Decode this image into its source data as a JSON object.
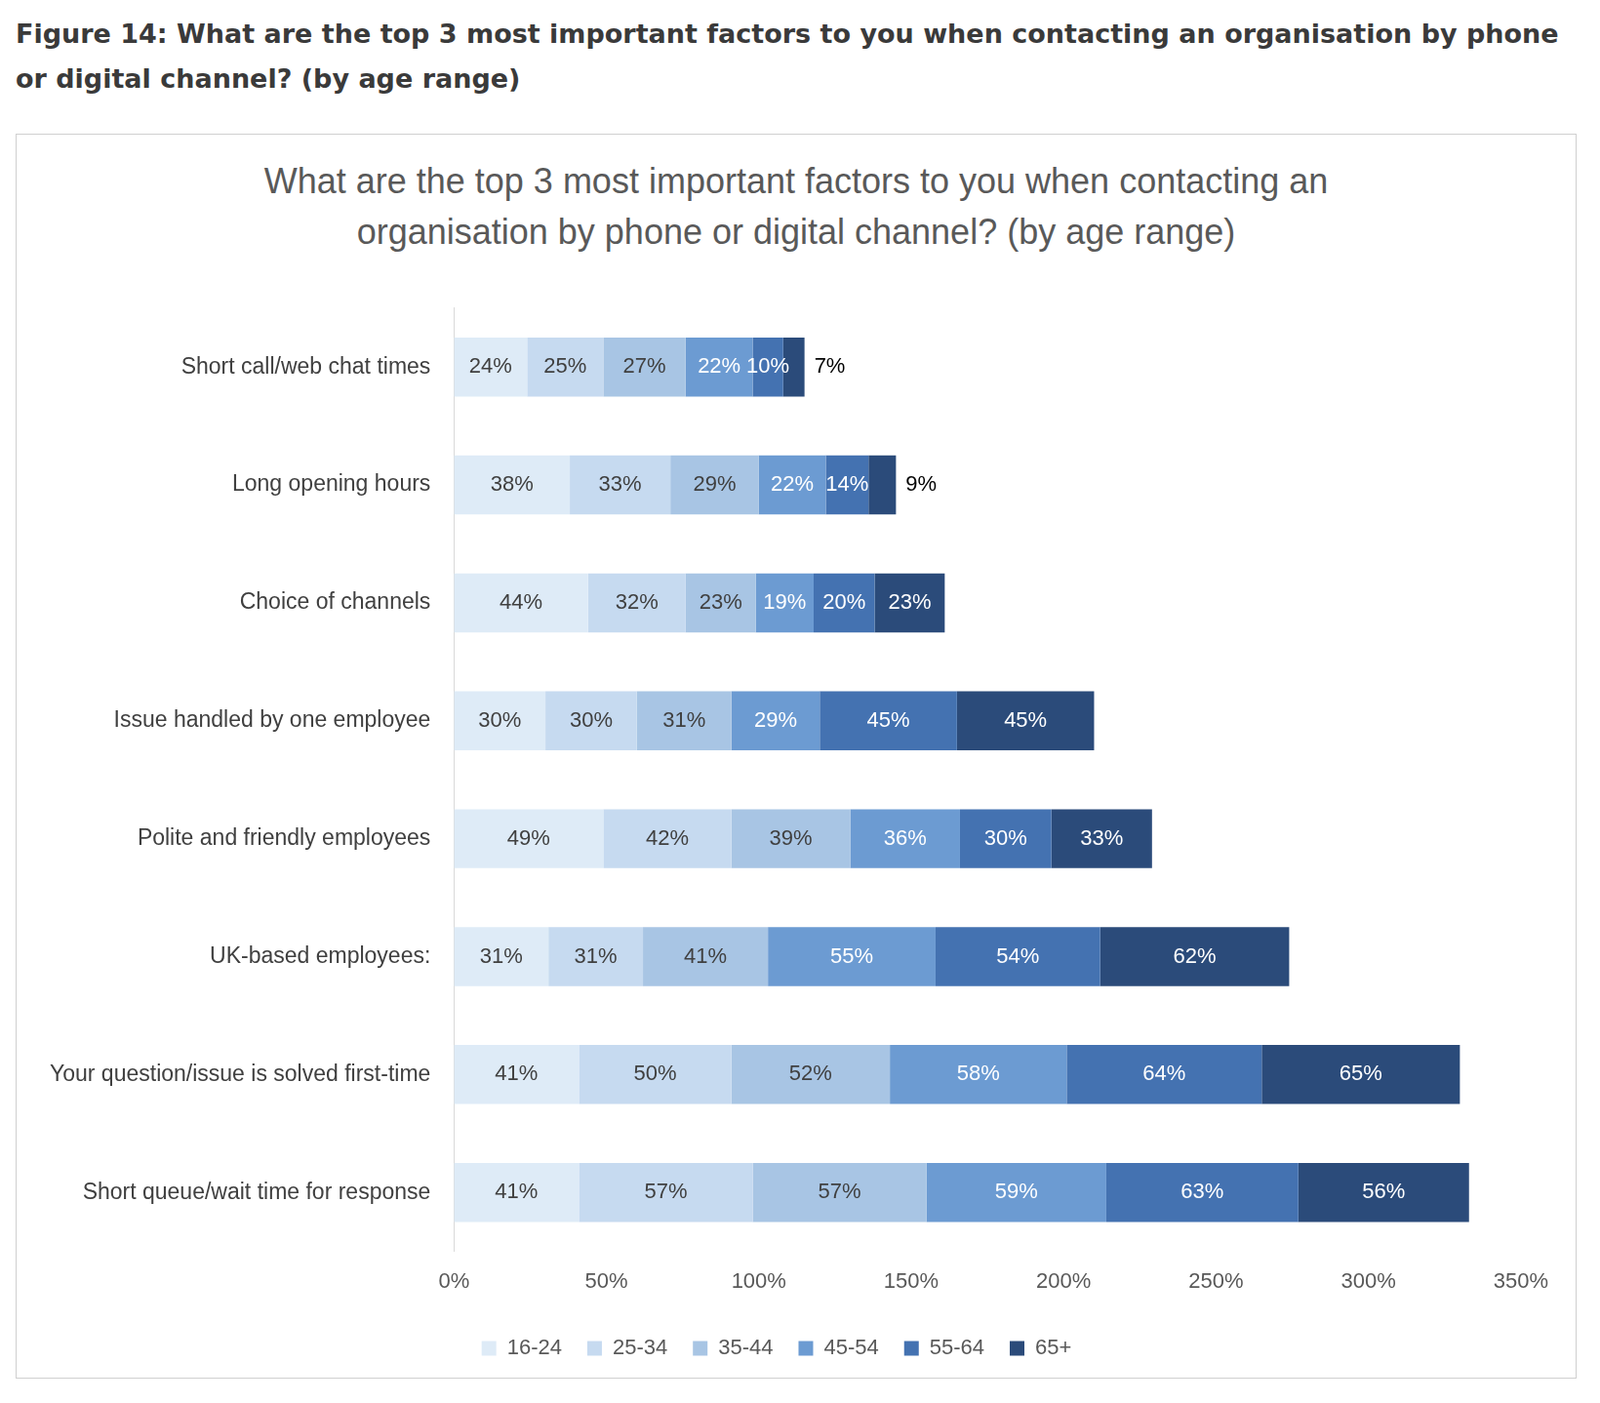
{
  "figure_caption": "Figure 14: What are the top 3 most important factors to you when contacting an organisation by phone or digital channel? (by age range)",
  "chart_data": {
    "type": "bar",
    "title": "What are the top 3 most important factors to you when contacting an organisation by phone or digital channel? (by age range)",
    "orientation": "horizontal",
    "stacked": true,
    "data_labels": true,
    "legend": "bottom",
    "grid": false,
    "categories": [
      "Short call/web chat times",
      "Long opening hours",
      "Choice of channels",
      "Issue handled by one employee",
      "Polite and friendly employees",
      "UK-based employees:",
      "Your question/issue is solved first-time",
      "Short queue/wait time for response"
    ],
    "xlim": [
      0,
      350
    ],
    "xticks": [
      {
        "value": 0,
        "label": "0%"
      },
      {
        "value": 50,
        "label": "50%"
      },
      {
        "value": 100,
        "label": "100%"
      },
      {
        "value": 150,
        "label": "150%"
      },
      {
        "value": 200,
        "label": "200%"
      },
      {
        "value": 250,
        "label": "250%"
      },
      {
        "value": 300,
        "label": "300%"
      },
      {
        "value": 350,
        "label": "350%"
      }
    ],
    "series": [
      {
        "name": "16-24",
        "color": "#deebf7",
        "values": [
          24,
          38,
          44,
          30,
          49,
          31,
          41,
          41
        ],
        "value_labels": [
          "24%",
          "38%",
          "44%",
          "30%",
          "49%",
          "31%",
          "41%",
          "41%"
        ]
      },
      {
        "name": "25-34",
        "color": "#c6daf0",
        "values": [
          25,
          33,
          32,
          30,
          42,
          31,
          50,
          57
        ],
        "value_labels": [
          "25%",
          "33%",
          "32%",
          "30%",
          "42%",
          "31%",
          "50%",
          "57%"
        ]
      },
      {
        "name": "35-44",
        "color": "#a8c5e4",
        "values": [
          27,
          29,
          23,
          31,
          39,
          41,
          52,
          57
        ],
        "value_labels": [
          "27%",
          "29%",
          "23%",
          "31%",
          "39%",
          "41%",
          "52%",
          "57%"
        ]
      },
      {
        "name": "45-54",
        "color": "#6c9bd2",
        "values": [
          22,
          22,
          19,
          29,
          36,
          55,
          58,
          59
        ],
        "value_labels": [
          "22%",
          "22%",
          "19%",
          "29%",
          "36%",
          "55%",
          "58%",
          "59%"
        ]
      },
      {
        "name": "55-64",
        "color": "#4472b1",
        "values": [
          10,
          14,
          20,
          45,
          30,
          54,
          64,
          63
        ],
        "value_labels": [
          "10%",
          "14%",
          "20%",
          "45%",
          "30%",
          "54%",
          "64%",
          "63%"
        ]
      },
      {
        "name": "65+",
        "color": "#2b4b7a",
        "values": [
          7,
          9,
          23,
          45,
          33,
          62,
          65,
          56
        ],
        "value_labels": [
          "7%",
          "9%",
          "23%",
          "45%",
          "33%",
          "62%",
          "65%",
          "56%"
        ]
      }
    ]
  }
}
